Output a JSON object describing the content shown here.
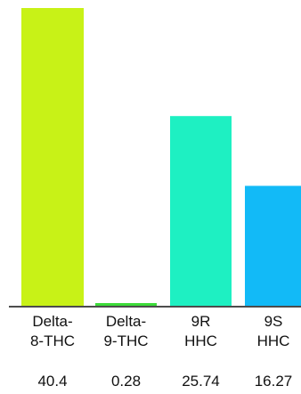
{
  "chart_data": {
    "type": "bar",
    "categories": [
      [
        "Delta-",
        "8-THC"
      ],
      [
        "Delta-",
        "9-THC"
      ],
      [
        "9R",
        "HHC"
      ],
      [
        "9S",
        "HHC"
      ]
    ],
    "values": [
      40.4,
      0.28,
      25.74,
      16.27
    ],
    "value_labels": [
      "40.4",
      "0.28",
      "25.74",
      "16.27"
    ],
    "colors": [
      "#c8f217",
      "#3ddc3a",
      "#1ef0c2",
      "#12baf7"
    ],
    "axis_color": "#111111",
    "ylim": [
      0,
      40.4
    ],
    "title": "",
    "xlabel": "",
    "ylabel": "",
    "grid": false,
    "legend": "none"
  }
}
